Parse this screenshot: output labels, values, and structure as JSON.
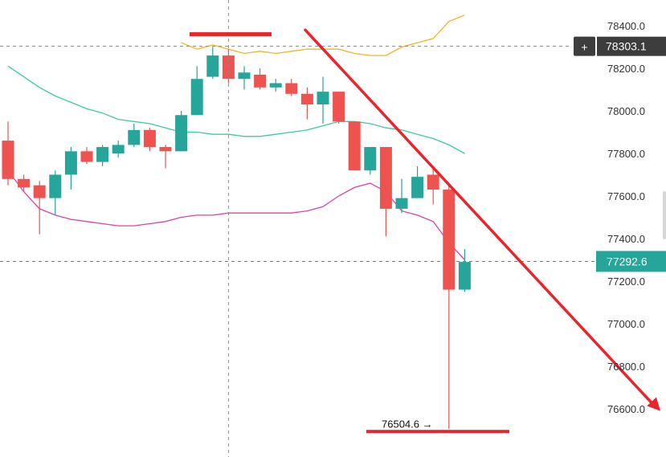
{
  "chart_data": {
    "type": "candlestick",
    "title": "",
    "xlabel": "",
    "ylabel": "",
    "ylim": [
      76500,
      78550
    ],
    "y_ticks": [
      {
        "value": 78400,
        "label": "78400.0"
      },
      {
        "value": 78200,
        "label": "78200.0"
      },
      {
        "value": 78000,
        "label": "78000.0"
      },
      {
        "value": 77800,
        "label": "77800.0"
      },
      {
        "value": 77600,
        "label": "77600.0"
      },
      {
        "value": 77400,
        "label": "77400.0"
      },
      {
        "value": 77200,
        "label": "77200.0"
      },
      {
        "value": 77000,
        "label": "77000.0"
      },
      {
        "value": 76800,
        "label": "76800.0"
      },
      {
        "value": 76600,
        "label": "76600.0"
      }
    ],
    "candles": [
      {
        "open": 77860,
        "high": 77950,
        "low": 77650,
        "close": 77680
      },
      {
        "open": 77680,
        "high": 77700,
        "low": 77620,
        "close": 77640
      },
      {
        "open": 77650,
        "high": 77670,
        "low": 77420,
        "close": 77590
      },
      {
        "open": 77590,
        "high": 77720,
        "low": 77510,
        "close": 77700
      },
      {
        "open": 77700,
        "high": 77830,
        "low": 77630,
        "close": 77810
      },
      {
        "open": 77810,
        "high": 77830,
        "low": 77750,
        "close": 77760
      },
      {
        "open": 77760,
        "high": 77840,
        "low": 77740,
        "close": 77830
      },
      {
        "open": 77800,
        "high": 77860,
        "low": 77780,
        "close": 77840
      },
      {
        "open": 77840,
        "high": 77940,
        "low": 77830,
        "close": 77910
      },
      {
        "open": 77910,
        "high": 77920,
        "low": 77810,
        "close": 77830
      },
      {
        "open": 77830,
        "high": 77840,
        "low": 77730,
        "close": 77810
      },
      {
        "open": 77810,
        "high": 78000,
        "low": 77810,
        "close": 77980
      },
      {
        "open": 77980,
        "high": 78210,
        "low": 77980,
        "close": 78150
      },
      {
        "open": 78160,
        "high": 78300,
        "low": 78150,
        "close": 78260
      },
      {
        "open": 78260,
        "high": 78290,
        "low": 78130,
        "close": 78150
      },
      {
        "open": 78150,
        "high": 78210,
        "low": 78100,
        "close": 78180
      },
      {
        "open": 78170,
        "high": 78200,
        "low": 78100,
        "close": 78110
      },
      {
        "open": 78110,
        "high": 78150,
        "low": 78090,
        "close": 78130
      },
      {
        "open": 78130,
        "high": 78150,
        "low": 78070,
        "close": 78080
      },
      {
        "open": 78080,
        "high": 78110,
        "low": 77960,
        "close": 78030
      },
      {
        "open": 78030,
        "high": 78160,
        "low": 77940,
        "close": 78090
      },
      {
        "open": 78090,
        "high": 78090,
        "low": 77940,
        "close": 77950
      },
      {
        "open": 77950,
        "high": 77950,
        "low": 77720,
        "close": 77720
      },
      {
        "open": 77720,
        "high": 77830,
        "low": 77700,
        "close": 77830
      },
      {
        "open": 77830,
        "high": 77830,
        "low": 77410,
        "close": 77540
      },
      {
        "open": 77540,
        "high": 77680,
        "low": 77520,
        "close": 77590
      },
      {
        "open": 77590,
        "high": 77740,
        "low": 77590,
        "close": 77690
      },
      {
        "open": 77700,
        "high": 77740,
        "low": 77560,
        "close": 77630
      },
      {
        "open": 77630,
        "high": 77660,
        "low": 76505,
        "close": 77160
      },
      {
        "open": 77160,
        "high": 77350,
        "low": 77150,
        "close": 77290
      }
    ],
    "bands": {
      "upper": [
        null,
        null,
        null,
        null,
        null,
        null,
        null,
        null,
        null,
        null,
        null,
        78320,
        78290,
        78310,
        78290,
        78270,
        78280,
        78270,
        78280,
        78290,
        78290,
        78290,
        78270,
        78260,
        78260,
        78300,
        78320,
        78340,
        78420,
        78450
      ],
      "middle": [
        78210,
        78160,
        78110,
        78070,
        78040,
        78010,
        77990,
        77960,
        77950,
        77940,
        77920,
        77900,
        77900,
        77890,
        77890,
        77880,
        77880,
        77890,
        77900,
        77910,
        77930,
        77950,
        77950,
        77940,
        77920,
        77910,
        77890,
        77870,
        77840,
        77800
      ],
      "lower": [
        77720,
        77620,
        77540,
        77510,
        77490,
        77480,
        77470,
        77460,
        77460,
        77470,
        77480,
        77500,
        77510,
        77510,
        77520,
        77520,
        77520,
        77520,
        77520,
        77530,
        77550,
        77600,
        77640,
        77660,
        77620,
        77530,
        77510,
        77480,
        77380,
        77300
      ]
    },
    "current_price": {
      "value": 77292.6,
      "label": "77292.6"
    },
    "crosshair_price": {
      "value": 78303.1,
      "label": "78303.1"
    },
    "low_marker": {
      "value": 76504.6,
      "label": "76504.6 →"
    },
    "annotations": {
      "resistance_line_value": 78360,
      "trendline": {
        "from_value": 78380,
        "to_value": 76590
      }
    },
    "colors": {
      "up": "#26a69a",
      "down": "#ef5350",
      "band_upper": "#f0b429",
      "band_middle": "#3ec9a7",
      "band_lower": "#e040a8",
      "current_price_line": "#26a69a",
      "crosshair": "#888888",
      "annotation": "#e8242c",
      "tag_current": "#26a69a",
      "tag_crosshair": "#3d3d3d"
    }
  }
}
